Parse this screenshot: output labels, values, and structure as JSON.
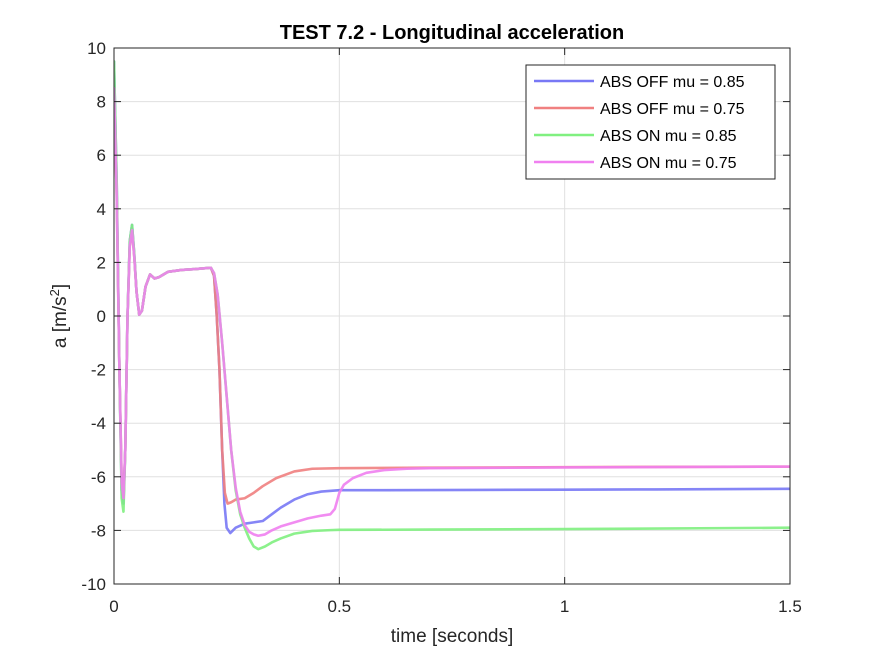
{
  "chart_data": {
    "type": "line",
    "title": "TEST 7.2 - Longitudinal acceleration",
    "xlabel": "time [seconds]",
    "ylabel_base": "a [m/s",
    "ylabel_sup": "2",
    "ylabel_end": "]",
    "xlim": [
      0,
      1.5
    ],
    "ylim": [
      -10,
      10
    ],
    "xticks": [
      0,
      0.5,
      1,
      1.5
    ],
    "xtick_labels": [
      "0",
      "0.5",
      "1",
      "1.5"
    ],
    "yticks": [
      -10,
      -8,
      -6,
      -4,
      -2,
      0,
      2,
      4,
      6,
      8,
      10
    ],
    "ytick_labels": [
      "-10",
      "-8",
      "-6",
      "-4",
      "-2",
      "0",
      "2",
      "4",
      "6",
      "8",
      "10"
    ],
    "grid": true,
    "legend_position": "top-right",
    "series": [
      {
        "name": "ABS OFF mu = 0.85",
        "color": "#7878f5",
        "points": [
          [
            0,
            9.5
          ],
          [
            0.006,
            5
          ],
          [
            0.012,
            -2
          ],
          [
            0.017,
            -6.5
          ],
          [
            0.021,
            -7.0
          ],
          [
            0.025,
            -5
          ],
          [
            0.03,
            0
          ],
          [
            0.035,
            2.8
          ],
          [
            0.04,
            3.4
          ],
          [
            0.045,
            2.3
          ],
          [
            0.05,
            0.9
          ],
          [
            0.056,
            0.05
          ],
          [
            0.062,
            0.2
          ],
          [
            0.07,
            1.1
          ],
          [
            0.08,
            1.55
          ],
          [
            0.09,
            1.4
          ],
          [
            0.1,
            1.45
          ],
          [
            0.12,
            1.65
          ],
          [
            0.15,
            1.72
          ],
          [
            0.18,
            1.75
          ],
          [
            0.2,
            1.78
          ],
          [
            0.215,
            1.8
          ],
          [
            0.222,
            1.5
          ],
          [
            0.228,
            0
          ],
          [
            0.234,
            -2
          ],
          [
            0.24,
            -5
          ],
          [
            0.245,
            -7
          ],
          [
            0.25,
            -7.9
          ],
          [
            0.258,
            -8.1
          ],
          [
            0.27,
            -7.9
          ],
          [
            0.29,
            -7.75
          ],
          [
            0.31,
            -7.7
          ],
          [
            0.33,
            -7.65
          ],
          [
            0.35,
            -7.4
          ],
          [
            0.37,
            -7.15
          ],
          [
            0.4,
            -6.85
          ],
          [
            0.43,
            -6.65
          ],
          [
            0.46,
            -6.55
          ],
          [
            0.5,
            -6.5
          ],
          [
            0.6,
            -6.5
          ],
          [
            0.8,
            -6.49
          ],
          [
            1.0,
            -6.48
          ],
          [
            1.2,
            -6.47
          ],
          [
            1.5,
            -6.45
          ]
        ]
      },
      {
        "name": "ABS OFF mu = 0.75",
        "color": "#f08080",
        "points": [
          [
            0,
            8.5
          ],
          [
            0.006,
            4.5
          ],
          [
            0.012,
            -2
          ],
          [
            0.017,
            -6.2
          ],
          [
            0.021,
            -6.8
          ],
          [
            0.025,
            -5
          ],
          [
            0.03,
            0
          ],
          [
            0.035,
            2.6
          ],
          [
            0.04,
            3.2
          ],
          [
            0.045,
            2.2
          ],
          [
            0.05,
            0.9
          ],
          [
            0.056,
            0.05
          ],
          [
            0.062,
            0.2
          ],
          [
            0.07,
            1.1
          ],
          [
            0.08,
            1.55
          ],
          [
            0.09,
            1.4
          ],
          [
            0.1,
            1.45
          ],
          [
            0.12,
            1.65
          ],
          [
            0.15,
            1.72
          ],
          [
            0.18,
            1.75
          ],
          [
            0.2,
            1.78
          ],
          [
            0.215,
            1.8
          ],
          [
            0.222,
            1.5
          ],
          [
            0.228,
            0
          ],
          [
            0.234,
            -2
          ],
          [
            0.24,
            -5
          ],
          [
            0.246,
            -6.6
          ],
          [
            0.252,
            -7.0
          ],
          [
            0.26,
            -6.95
          ],
          [
            0.27,
            -6.85
          ],
          [
            0.29,
            -6.8
          ],
          [
            0.31,
            -6.6
          ],
          [
            0.33,
            -6.35
          ],
          [
            0.36,
            -6.05
          ],
          [
            0.4,
            -5.8
          ],
          [
            0.44,
            -5.7
          ],
          [
            0.5,
            -5.68
          ],
          [
            0.7,
            -5.66
          ],
          [
            1.0,
            -5.64
          ],
          [
            1.5,
            -5.62
          ]
        ]
      },
      {
        "name": "ABS ON  mu = 0.85",
        "color": "#80f080",
        "points": [
          [
            0,
            9.5
          ],
          [
            0.006,
            5
          ],
          [
            0.012,
            -2
          ],
          [
            0.017,
            -6.8
          ],
          [
            0.021,
            -7.3
          ],
          [
            0.025,
            -5
          ],
          [
            0.03,
            0
          ],
          [
            0.035,
            2.8
          ],
          [
            0.04,
            3.4
          ],
          [
            0.045,
            2.3
          ],
          [
            0.05,
            0.9
          ],
          [
            0.056,
            0.05
          ],
          [
            0.062,
            0.2
          ],
          [
            0.07,
            1.1
          ],
          [
            0.08,
            1.55
          ],
          [
            0.09,
            1.4
          ],
          [
            0.1,
            1.45
          ],
          [
            0.12,
            1.65
          ],
          [
            0.15,
            1.72
          ],
          [
            0.18,
            1.75
          ],
          [
            0.2,
            1.78
          ],
          [
            0.215,
            1.8
          ],
          [
            0.222,
            1.6
          ],
          [
            0.23,
            0.8
          ],
          [
            0.24,
            -1
          ],
          [
            0.25,
            -3
          ],
          [
            0.26,
            -5
          ],
          [
            0.27,
            -6.5
          ],
          [
            0.28,
            -7.4
          ],
          [
            0.29,
            -7.9
          ],
          [
            0.3,
            -8.3
          ],
          [
            0.31,
            -8.6
          ],
          [
            0.32,
            -8.7
          ],
          [
            0.335,
            -8.6
          ],
          [
            0.35,
            -8.45
          ],
          [
            0.37,
            -8.3
          ],
          [
            0.4,
            -8.12
          ],
          [
            0.44,
            -8.02
          ],
          [
            0.48,
            -7.99
          ],
          [
            0.5,
            -7.98
          ],
          [
            0.7,
            -7.97
          ],
          [
            1.0,
            -7.95
          ],
          [
            1.3,
            -7.92
          ],
          [
            1.5,
            -7.9
          ]
        ]
      },
      {
        "name": "ABS ON  mu = 0.75",
        "color": "#f080f0",
        "points": [
          [
            0,
            8.5
          ],
          [
            0.006,
            4.5
          ],
          [
            0.012,
            -2
          ],
          [
            0.017,
            -6.2
          ],
          [
            0.021,
            -6.8
          ],
          [
            0.025,
            -5
          ],
          [
            0.03,
            0
          ],
          [
            0.035,
            2.6
          ],
          [
            0.04,
            3.2
          ],
          [
            0.045,
            2.2
          ],
          [
            0.05,
            0.9
          ],
          [
            0.056,
            0.05
          ],
          [
            0.062,
            0.2
          ],
          [
            0.07,
            1.1
          ],
          [
            0.08,
            1.55
          ],
          [
            0.09,
            1.4
          ],
          [
            0.1,
            1.45
          ],
          [
            0.12,
            1.65
          ],
          [
            0.15,
            1.72
          ],
          [
            0.18,
            1.75
          ],
          [
            0.2,
            1.78
          ],
          [
            0.215,
            1.8
          ],
          [
            0.222,
            1.6
          ],
          [
            0.23,
            0.8
          ],
          [
            0.24,
            -1
          ],
          [
            0.25,
            -3
          ],
          [
            0.26,
            -5
          ],
          [
            0.27,
            -6.4
          ],
          [
            0.28,
            -7.3
          ],
          [
            0.29,
            -7.8
          ],
          [
            0.3,
            -8.05
          ],
          [
            0.31,
            -8.15
          ],
          [
            0.32,
            -8.2
          ],
          [
            0.335,
            -8.15
          ],
          [
            0.35,
            -8.0
          ],
          [
            0.37,
            -7.85
          ],
          [
            0.4,
            -7.7
          ],
          [
            0.43,
            -7.55
          ],
          [
            0.46,
            -7.45
          ],
          [
            0.48,
            -7.4
          ],
          [
            0.49,
            -7.2
          ],
          [
            0.495,
            -6.9
          ],
          [
            0.5,
            -6.6
          ],
          [
            0.51,
            -6.3
          ],
          [
            0.53,
            -6.05
          ],
          [
            0.56,
            -5.85
          ],
          [
            0.6,
            -5.75
          ],
          [
            0.65,
            -5.7
          ],
          [
            0.7,
            -5.68
          ],
          [
            1.0,
            -5.65
          ],
          [
            1.5,
            -5.62
          ]
        ]
      }
    ]
  }
}
